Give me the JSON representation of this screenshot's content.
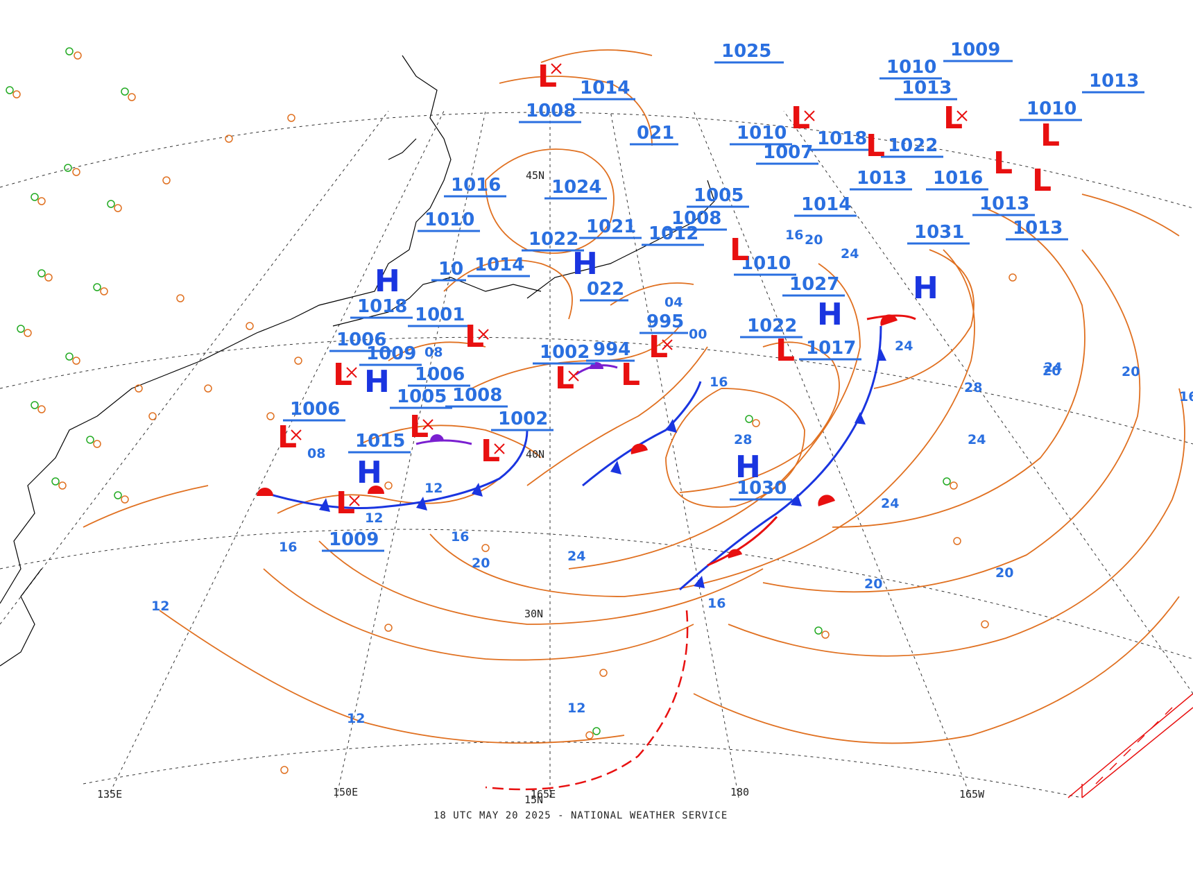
{
  "footer": "18 UTC MAY 20 2025 - NATIONAL WEATHER SERVICE",
  "colors": {
    "isobar": "#e07020",
    "high": "#1a35e0",
    "low": "#e81010",
    "label": "#2a6fe0",
    "cold_front": "#1a35e0",
    "warm_front": "#e81010",
    "occluded": "#7a1fd0",
    "grid": "#333333",
    "coast": "#000000"
  },
  "grid_labels": {
    "lon_135e": "135E",
    "lon_150e": "150E",
    "lon_165e": "165E",
    "lon_180": "180",
    "lon_165w": "165W",
    "lat_45n": "45N",
    "lat_40n": "40N",
    "lat_30n": "30N",
    "lat_15n": "15N"
  },
  "pressure_labels": [
    {
      "text": "1025"
    },
    {
      "text": "1009"
    },
    {
      "text": "1014"
    },
    {
      "text": "1008"
    },
    {
      "text": "1010"
    },
    {
      "text": "1013"
    },
    {
      "text": "1010"
    },
    {
      "text": "1013"
    },
    {
      "text": "021"
    },
    {
      "text": "1010"
    },
    {
      "text": "1007"
    },
    {
      "text": "1018"
    },
    {
      "text": "1022"
    },
    {
      "text": "1016"
    },
    {
      "text": "1024"
    },
    {
      "text": "1005"
    },
    {
      "text": "1013"
    },
    {
      "text": "1014"
    },
    {
      "text": "1013"
    },
    {
      "text": "1010"
    },
    {
      "text": "1021"
    },
    {
      "text": "1008"
    },
    {
      "text": "1031"
    },
    {
      "text": "1013"
    },
    {
      "text": "1022"
    },
    {
      "text": "1012"
    },
    {
      "text": "1014"
    },
    {
      "text": "1010"
    },
    {
      "text": "022"
    },
    {
      "text": "1027"
    },
    {
      "text": "1018"
    },
    {
      "text": "1001"
    },
    {
      "text": "995"
    },
    {
      "text": "1022"
    },
    {
      "text": "1006"
    },
    {
      "text": "1009"
    },
    {
      "text": "1002"
    },
    {
      "text": "994"
    },
    {
      "text": "1017"
    },
    {
      "text": "1006"
    },
    {
      "text": "1005"
    },
    {
      "text": "1008"
    },
    {
      "text": "1006"
    },
    {
      "text": "1002"
    },
    {
      "text": "1015"
    },
    {
      "text": "1030"
    },
    {
      "text": "1009"
    },
    {
      "text": "10"
    },
    {
      "text": "1016"
    }
  ],
  "highs": [
    "H",
    "H",
    "H",
    "H",
    "H",
    "H",
    "H"
  ],
  "lows": [
    "L",
    "L",
    "L",
    "L",
    "L",
    "L",
    "L",
    "L",
    "L",
    "L",
    "L",
    "L",
    "L",
    "L",
    "L",
    "L",
    "L"
  ],
  "isobar_values": [
    "12",
    "16",
    "20",
    "24",
    "28",
    "24",
    "20",
    "16",
    "12",
    "12",
    "16",
    "20",
    "24",
    "28",
    "24",
    "20",
    "16",
    "20",
    "24",
    "16",
    "12",
    "20",
    "24",
    "08",
    "04",
    "00",
    "16",
    "12",
    "08"
  ]
}
